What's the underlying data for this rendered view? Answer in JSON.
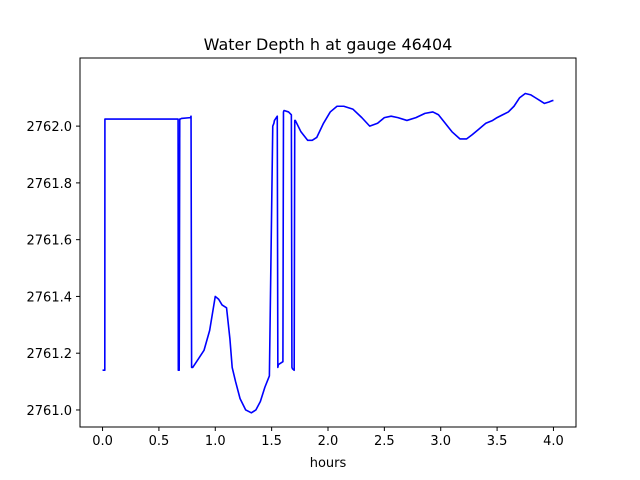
{
  "chart_data": {
    "type": "line",
    "title": "Water Depth h at gauge 46404",
    "xlabel": "hours",
    "ylabel": "",
    "xlim": [
      -0.2,
      4.2
    ],
    "ylim": [
      2760.94,
      2762.24
    ],
    "xticks": [
      0.0,
      0.5,
      1.0,
      1.5,
      2.0,
      2.5,
      3.0,
      3.5,
      4.0
    ],
    "xtick_labels": [
      "0.0",
      "0.5",
      "1.0",
      "1.5",
      "2.0",
      "2.5",
      "3.0",
      "3.5",
      "4.0"
    ],
    "yticks": [
      2761.0,
      2761.2,
      2761.4,
      2761.6,
      2761.8,
      2762.0
    ],
    "ytick_labels": [
      "2761.0",
      "2761.2",
      "2761.4",
      "2761.6",
      "2761.8",
      "2762.0"
    ],
    "grid": false,
    "line_color": "#0000ff",
    "series": [
      {
        "x": [
          0.0,
          0.02,
          0.021,
          0.3,
          0.6,
          0.67,
          0.672,
          0.68,
          0.685,
          0.69,
          0.7,
          0.78,
          0.785,
          0.79,
          0.8,
          0.85,
          0.9,
          0.95,
          1.0,
          1.03,
          1.06,
          1.1,
          1.13,
          1.15,
          1.18,
          1.22,
          1.27,
          1.32,
          1.36,
          1.4,
          1.44,
          1.48,
          1.51,
          1.52,
          1.525,
          1.55,
          1.555,
          1.56,
          1.6,
          1.605,
          1.61,
          1.65,
          1.675,
          1.68,
          1.685,
          1.7,
          1.705,
          1.71,
          1.76,
          1.82,
          1.86,
          1.9,
          1.96,
          2.02,
          2.08,
          2.14,
          2.22,
          2.3,
          2.37,
          2.44,
          2.5,
          2.56,
          2.62,
          2.7,
          2.78,
          2.86,
          2.93,
          2.98,
          3.04,
          3.1,
          3.17,
          3.23,
          3.28,
          3.34,
          3.4,
          3.46,
          3.5,
          3.55,
          3.6,
          3.65,
          3.7,
          3.75,
          3.8,
          3.84,
          3.88,
          3.92,
          3.96,
          3.99,
          4.0
        ],
        "y": [
          2761.14,
          2761.14,
          2762.025,
          2762.025,
          2762.025,
          2762.025,
          2761.14,
          2761.14,
          2762.025,
          2762.025,
          2762.027,
          2762.03,
          2762.035,
          2761.15,
          2761.15,
          2761.18,
          2761.21,
          2761.28,
          2761.4,
          2761.39,
          2761.37,
          2761.36,
          2761.25,
          2761.15,
          2761.1,
          2761.04,
          2761.0,
          2760.99,
          2761.0,
          2761.03,
          2761.08,
          2761.12,
          2762.0,
          2762.01,
          2762.02,
          2762.035,
          2761.15,
          2761.16,
          2761.17,
          2762.05,
          2762.055,
          2762.05,
          2762.04,
          2761.15,
          2761.145,
          2761.14,
          2762.02,
          2762.02,
          2761.98,
          2761.95,
          2761.95,
          2761.96,
          2762.01,
          2762.05,
          2762.07,
          2762.07,
          2762.06,
          2762.03,
          2762.0,
          2762.01,
          2762.03,
          2762.035,
          2762.03,
          2762.02,
          2762.03,
          2762.045,
          2762.05,
          2762.04,
          2762.01,
          2761.98,
          2761.955,
          2761.955,
          2761.97,
          2761.99,
          2762.01,
          2762.02,
          2762.03,
          2762.04,
          2762.05,
          2762.07,
          2762.1,
          2762.115,
          2762.11,
          2762.1,
          2762.09,
          2762.08,
          2762.085,
          2762.09,
          2762.09
        ]
      }
    ]
  }
}
